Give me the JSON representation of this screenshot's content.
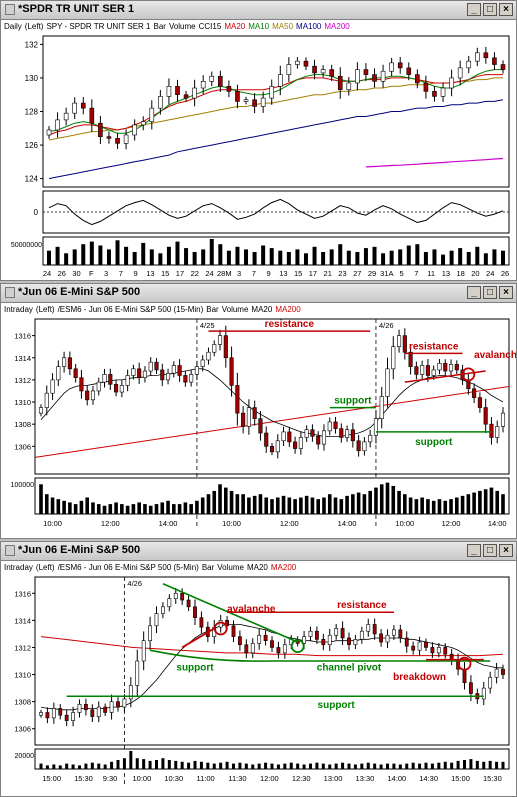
{
  "colors": {
    "ma20": "#d00000",
    "ma10": "#008000",
    "ma50": "#a08000",
    "ma100": "#000080",
    "ma200": "#cc00cc",
    "up": "#ffffff",
    "down": "#a00000",
    "annot_red": "#c00000",
    "annot_green": "#008000"
  },
  "icons": {
    "window": "chart-window-icon",
    "minimize": "minimize-icon",
    "maximize": "maximize-icon",
    "close": "close-icon"
  },
  "window_buttons": {
    "minimize": "_",
    "maximize": "□",
    "close": "×"
  },
  "win1": {
    "title": "*SPDR TR UNIT SER 1",
    "legend": [
      {
        "text": "Daily",
        "color": "#000"
      },
      {
        "text": "(Left)",
        "color": "#000"
      },
      {
        "text": "SPY - SPDR TR UNIT SER 1",
        "color": "#000"
      },
      {
        "text": "Bar",
        "color": "#000"
      },
      {
        "text": "Volume",
        "color": "#000"
      },
      {
        "text": "CCI15",
        "color": "#000"
      },
      {
        "text": "MA20",
        "color": "#d00000"
      },
      {
        "text": "MA10",
        "color": "#008000"
      },
      {
        "text": "MA50",
        "color": "#a08000"
      },
      {
        "text": "MA100",
        "color": "#000080"
      },
      {
        "text": "MA200",
        "color": "#cc00cc"
      }
    ]
  },
  "win2": {
    "title": "*Jun 06  E-Mini S&P 500",
    "legend": [
      {
        "text": "Intraday",
        "color": "#000"
      },
      {
        "text": "(Left)",
        "color": "#000"
      },
      {
        "text": "/ESM6 - Jun 06  E-Mini S&P 500  (15-Min)",
        "color": "#000"
      },
      {
        "text": "Bar",
        "color": "#000"
      },
      {
        "text": "Volume",
        "color": "#000"
      },
      {
        "text": "MA20",
        "color": "#000"
      },
      {
        "text": "MA200",
        "color": "#d00000"
      }
    ]
  },
  "win3": {
    "title": "*Jun 06  E-Mini S&P 500",
    "legend": [
      {
        "text": "Intraday",
        "color": "#000"
      },
      {
        "text": "(Left)",
        "color": "#000"
      },
      {
        "text": "/ESM6 - Jun 06  E-Mini S&P 500  (5-Min)",
        "color": "#000"
      },
      {
        "text": "Bar",
        "color": "#000"
      },
      {
        "text": "Volume",
        "color": "#000"
      },
      {
        "text": "MA20",
        "color": "#000"
      },
      {
        "text": "MA200",
        "color": "#d00000"
      }
    ]
  },
  "chart_data": [
    {
      "type": "candlestick",
      "title": "SPY - SPDR TR UNIT SER 1",
      "xlabel": "",
      "ylabel": "",
      "ylim": [
        123.5,
        132.5
      ],
      "yticks": [
        124,
        126,
        128,
        130,
        132
      ],
      "xticks": [
        "24",
        "26",
        "30",
        "F",
        "3",
        "7",
        "9",
        "13",
        "15",
        "17",
        "22",
        "24",
        "28M",
        "3",
        "7",
        "9",
        "13",
        "15",
        "17",
        "21",
        "23",
        "27",
        "29",
        "31A",
        "5",
        "7",
        "11",
        "13",
        "18",
        "20",
        "24",
        "26"
      ],
      "close": [
        126.9,
        127.5,
        127.9,
        128.5,
        128.2,
        127.3,
        126.5,
        126.4,
        126.1,
        126.6,
        127.2,
        127.4,
        128.2,
        128.9,
        129.5,
        129.0,
        128.8,
        129.4,
        129.8,
        130.1,
        129.5,
        129.2,
        128.6,
        128.7,
        128.3,
        128.8,
        129.5,
        130.2,
        130.8,
        131.0,
        130.7,
        130.3,
        130.5,
        130.1,
        129.3,
        129.7,
        130.5,
        130.2,
        129.8,
        130.4,
        130.9,
        130.6,
        130.2,
        129.7,
        129.2,
        128.9,
        129.4,
        130.0,
        130.6,
        131.0,
        131.5,
        131.2,
        130.8,
        130.5
      ],
      "ma20": [
        126.6,
        126.8,
        126.9,
        127.1,
        127.2,
        127.2,
        127.1,
        127.0,
        126.9,
        127.0,
        127.2,
        127.4,
        127.7,
        128.0,
        128.3,
        128.5,
        128.6,
        128.8,
        129.0,
        129.2,
        129.3,
        129.3,
        129.3,
        129.3,
        129.3,
        129.3,
        129.4,
        129.5,
        129.7,
        129.9,
        130.0,
        130.0,
        130.0,
        129.9,
        129.8,
        129.8,
        129.8,
        129.9,
        129.9,
        129.9,
        130.0,
        130.0,
        130.0,
        129.9,
        129.8,
        129.7,
        129.7,
        129.7,
        129.8,
        129.9,
        130.1,
        130.2,
        130.2,
        130.2
      ],
      "ma10": [
        126.8,
        126.9,
        127.1,
        127.3,
        127.4,
        127.3,
        127.1,
        126.9,
        126.7,
        126.7,
        126.9,
        127.2,
        127.6,
        128.0,
        128.4,
        128.6,
        128.8,
        129.0,
        129.2,
        129.4,
        129.5,
        129.4,
        129.2,
        129.1,
        129.0,
        129.0,
        129.1,
        129.3,
        129.6,
        129.9,
        130.1,
        130.2,
        130.2,
        130.1,
        129.9,
        129.8,
        129.8,
        129.9,
        130.0,
        130.0,
        130.1,
        130.1,
        130.0,
        129.9,
        129.7,
        129.5,
        129.4,
        129.4,
        129.6,
        129.9,
        130.2,
        130.4,
        130.5,
        130.5
      ],
      "ma50": [
        126.3,
        126.4,
        126.5,
        126.6,
        126.7,
        126.8,
        126.8,
        126.9,
        126.9,
        127.0,
        127.1,
        127.2,
        127.3,
        127.4,
        127.5,
        127.6,
        127.7,
        127.8,
        127.9,
        128.0,
        128.1,
        128.2,
        128.3,
        128.3,
        128.4,
        128.5,
        128.5,
        128.6,
        128.7,
        128.8,
        128.9,
        129.0,
        129.0,
        129.1,
        129.2,
        129.2,
        129.3,
        129.3,
        129.4,
        129.4,
        129.5,
        129.5,
        129.6,
        129.6,
        129.6,
        129.7,
        129.7,
        129.7,
        129.8,
        129.8,
        129.9,
        129.9,
        130.0,
        130.0
      ],
      "ma100": [
        124.0,
        124.1,
        124.2,
        124.3,
        124.4,
        124.5,
        124.6,
        124.7,
        124.8,
        124.9,
        125.0,
        125.1,
        125.2,
        125.3,
        125.4,
        125.6,
        125.7,
        125.8,
        125.9,
        126.0,
        126.1,
        126.2,
        126.3,
        126.4,
        126.5,
        126.6,
        126.7,
        126.8,
        126.9,
        127.0,
        127.1,
        127.2,
        127.3,
        127.4,
        127.5,
        127.6,
        127.7,
        127.7,
        127.8,
        127.9,
        128.0,
        128.0,
        128.1,
        128.2,
        128.2,
        128.3,
        128.3,
        128.4,
        128.4,
        128.5,
        128.5,
        128.6,
        128.6,
        128.7
      ],
      "ma200_start_index": 37,
      "ma200": [
        124.7,
        124.72,
        124.75,
        124.78,
        124.8,
        124.83,
        124.86,
        124.9,
        124.93,
        124.96,
        125.0,
        125.03,
        125.06,
        125.1,
        125.13,
        125.17,
        125.2
      ],
      "cci_ylim": [
        -200,
        200
      ],
      "cci_ytick": "0",
      "cci": [
        40,
        80,
        60,
        -20,
        -80,
        -120,
        -90,
        -40,
        10,
        60,
        90,
        110,
        70,
        20,
        -30,
        -60,
        -40,
        10,
        60,
        80,
        40,
        -10,
        -70,
        -50,
        -20,
        40,
        90,
        120,
        80,
        20,
        -20,
        -60,
        -40,
        10,
        60,
        40,
        -10,
        -30,
        20,
        60,
        30,
        -20,
        -60,
        -100,
        -80,
        -20,
        40,
        90,
        70,
        30,
        -10,
        -40,
        -20,
        10
      ],
      "volume_ytick": "50000000",
      "volume": [
        0.55,
        0.7,
        0.45,
        0.6,
        0.8,
        0.9,
        0.75,
        0.6,
        0.95,
        0.7,
        0.5,
        0.85,
        0.6,
        0.45,
        0.7,
        0.9,
        0.65,
        0.5,
        0.6,
        1.0,
        0.8,
        0.55,
        0.7,
        0.6,
        0.5,
        0.75,
        0.65,
        0.55,
        0.5,
        0.6,
        0.45,
        0.7,
        0.5,
        0.6,
        0.8,
        0.55,
        0.5,
        0.65,
        0.7,
        0.45,
        0.55,
        0.6,
        0.75,
        0.8,
        0.5,
        0.6,
        0.4,
        0.55,
        0.65,
        0.5,
        0.7,
        0.45,
        0.6,
        0.55
      ]
    },
    {
      "type": "candlestick",
      "title": "/ESM6 - Jun 06  E-Mini S&P 500  (15-Min)",
      "ylim": [
        1303.5,
        1317.5
      ],
      "yticks": [
        1306,
        1308,
        1310,
        1312,
        1314,
        1316
      ],
      "xticks": [
        "10:00",
        "12:00",
        "14:00",
        "10:00",
        "12:00",
        "14:00",
        "10:00",
        "12:00",
        "14:00"
      ],
      "day_labels": [
        "4/25",
        "4/26"
      ],
      "close": [
        1309.5,
        1310.8,
        1312.0,
        1313.2,
        1314.0,
        1313.0,
        1312.2,
        1311.0,
        1310.2,
        1311.0,
        1311.8,
        1312.5,
        1311.6,
        1310.9,
        1311.5,
        1312.4,
        1313.0,
        1312.2,
        1312.8,
        1313.6,
        1312.9,
        1312.0,
        1312.6,
        1313.3,
        1312.4,
        1311.8,
        1312.5,
        1313.2,
        1313.8,
        1314.5,
        1315.2,
        1316.0,
        1314.0,
        1311.5,
        1309.0,
        1307.8,
        1309.5,
        1308.5,
        1307.2,
        1306.0,
        1305.5,
        1306.5,
        1307.3,
        1306.4,
        1305.8,
        1306.8,
        1307.5,
        1306.9,
        1306.2,
        1307.4,
        1308.2,
        1307.6,
        1306.8,
        1307.5,
        1306.5,
        1305.6,
        1306.4,
        1307.0,
        1308.5,
        1310.5,
        1313.0,
        1315.0,
        1316.0,
        1314.5,
        1313.2,
        1312.5,
        1313.3,
        1312.4,
        1312.9,
        1313.5,
        1312.8,
        1313.4,
        1312.9,
        1312.0,
        1311.2,
        1310.4,
        1309.5,
        1308.0,
        1306.8,
        1307.8,
        1309.0
      ],
      "ma20": [
        1308.4,
        1309.0,
        1309.6,
        1310.2,
        1310.8,
        1311.2,
        1311.4,
        1311.5,
        1311.5,
        1311.6,
        1311.7,
        1311.8,
        1311.9,
        1312.0,
        1312.0,
        1312.1,
        1312.2,
        1312.2,
        1312.3,
        1312.4,
        1312.4,
        1312.5,
        1312.5,
        1312.6,
        1312.7,
        1312.8,
        1312.9,
        1313.0,
        1313.0,
        1312.8,
        1312.4,
        1312.0,
        1311.5,
        1311.0,
        1310.5,
        1310.0,
        1309.6,
        1309.2,
        1308.9,
        1308.6,
        1308.3,
        1308.1,
        1307.9,
        1307.7,
        1307.5,
        1307.3,
        1307.2,
        1307.1,
        1307.0,
        1306.9,
        1306.9,
        1306.9,
        1306.9,
        1307.0,
        1307.1,
        1307.2,
        1307.4,
        1307.7,
        1308.2,
        1308.8,
        1309.4,
        1310.0,
        1310.6,
        1311.1,
        1311.5,
        1311.8,
        1312.0,
        1312.2,
        1312.3,
        1312.4,
        1312.4,
        1312.3,
        1312.2,
        1312.0,
        1311.8,
        1311.6,
        1311.3,
        1311.0,
        1310.6,
        1310.3,
        1310.0
      ],
      "ma200": [
        1305.0,
        1311.4
      ],
      "annotations": [
        {
          "text": "resistance",
          "color": "#c00000"
        },
        {
          "text": "resistance",
          "color": "#c00000"
        },
        {
          "text": "avalanche",
          "color": "#c00000"
        },
        {
          "text": "support",
          "color": "#008000"
        },
        {
          "text": "support",
          "color": "#008000"
        }
      ],
      "volume_ytick": "100000",
      "volume": [
        0.9,
        0.6,
        0.5,
        0.45,
        0.4,
        0.35,
        0.3,
        0.4,
        0.5,
        0.35,
        0.3,
        0.25,
        0.3,
        0.35,
        0.3,
        0.25,
        0.3,
        0.35,
        0.3,
        0.25,
        0.3,
        0.35,
        0.4,
        0.3,
        0.3,
        0.35,
        0.3,
        0.4,
        0.5,
        0.6,
        0.7,
        0.9,
        0.8,
        0.7,
        0.6,
        0.6,
        0.5,
        0.55,
        0.6,
        0.5,
        0.45,
        0.5,
        0.55,
        0.5,
        0.45,
        0.5,
        0.55,
        0.5,
        0.45,
        0.5,
        0.6,
        0.5,
        0.45,
        0.55,
        0.6,
        0.65,
        0.6,
        0.7,
        0.8,
        0.9,
        0.95,
        0.85,
        0.7,
        0.6,
        0.5,
        0.45,
        0.5,
        0.45,
        0.4,
        0.45,
        0.4,
        0.45,
        0.5,
        0.55,
        0.6,
        0.65,
        0.7,
        0.75,
        0.8,
        0.7,
        0.6
      ]
    },
    {
      "type": "candlestick",
      "title": "/ESM6 - Jun 06  E-Mini S&P 500  (5-Min)",
      "ylim": [
        1304.8,
        1317.2
      ],
      "yticks": [
        1306,
        1308,
        1310,
        1312,
        1314,
        1316
      ],
      "xticks": [
        "15:00",
        "15:30",
        "9:30",
        "10:00",
        "10:30",
        "11:00",
        "11:30",
        "12:00",
        "12:30",
        "13:00",
        "13:30",
        "14:00",
        "14:30",
        "15:00",
        "15:30"
      ],
      "day_labels": [
        "4/26"
      ],
      "close": [
        1307.2,
        1306.8,
        1307.5,
        1307.0,
        1306.6,
        1307.2,
        1307.8,
        1307.4,
        1306.9,
        1307.6,
        1307.2,
        1308.0,
        1307.6,
        1308.2,
        1309.2,
        1311.0,
        1312.5,
        1313.6,
        1314.5,
        1315.0,
        1315.6,
        1316.0,
        1315.5,
        1315.0,
        1314.2,
        1313.5,
        1312.8,
        1313.5,
        1314.0,
        1313.6,
        1312.8,
        1312.2,
        1311.6,
        1312.3,
        1312.9,
        1312.5,
        1312.0,
        1311.6,
        1312.2,
        1312.6,
        1312.3,
        1312.8,
        1313.2,
        1312.6,
        1312.2,
        1312.9,
        1313.4,
        1312.7,
        1312.2,
        1312.6,
        1313.2,
        1313.7,
        1313.0,
        1312.4,
        1312.9,
        1313.3,
        1312.7,
        1312.1,
        1311.8,
        1312.4,
        1312.0,
        1311.6,
        1312.0,
        1311.5,
        1311.1,
        1310.4,
        1309.4,
        1308.6,
        1308.2,
        1309.0,
        1309.8,
        1310.4,
        1310.0
      ],
      "ma20": [
        1307.6,
        1307.5,
        1307.5,
        1307.4,
        1307.4,
        1307.4,
        1307.5,
        1307.5,
        1307.5,
        1307.5,
        1307.5,
        1307.6,
        1307.6,
        1307.7,
        1307.9,
        1308.2,
        1308.6,
        1309.1,
        1309.6,
        1310.2,
        1310.8,
        1311.4,
        1311.9,
        1312.3,
        1312.7,
        1313.0,
        1313.2,
        1313.4,
        1313.6,
        1313.7,
        1313.7,
        1313.7,
        1313.6,
        1313.5,
        1313.4,
        1313.3,
        1313.1,
        1313.0,
        1312.8,
        1312.7,
        1312.6,
        1312.5,
        1312.5,
        1312.4,
        1312.4,
        1312.4,
        1312.5,
        1312.5,
        1312.5,
        1312.5,
        1312.6,
        1312.6,
        1312.7,
        1312.7,
        1312.7,
        1312.7,
        1312.7,
        1312.6,
        1312.6,
        1312.5,
        1312.4,
        1312.3,
        1312.2,
        1312.1,
        1312.0,
        1311.8,
        1311.5,
        1311.2,
        1310.9,
        1310.7,
        1310.6,
        1310.5,
        1310.5
      ],
      "ma200": [
        1312.8,
        1312.6,
        1312.4,
        1312.2,
        1312.0,
        1311.9,
        1311.8,
        1311.7,
        1311.6,
        1311.6,
        1311.5,
        1311.5,
        1311.4,
        1311.4,
        1311.4,
        1311.4,
        1311.4,
        1311.4,
        1311.4,
        1311.4,
        1311.5
      ],
      "annotations": [
        {
          "text": "avalanche",
          "color": "#c00000"
        },
        {
          "text": "resistance",
          "color": "#c00000"
        },
        {
          "text": "support",
          "color": "#008000"
        },
        {
          "text": "channel pivot",
          "color": "#008000"
        },
        {
          "text": "breakdown",
          "color": "#c00000"
        },
        {
          "text": "support",
          "color": "#008000"
        }
      ],
      "volume_ytick": "20000",
      "volume": [
        0.3,
        0.2,
        0.25,
        0.2,
        0.3,
        0.25,
        0.2,
        0.3,
        0.35,
        0.3,
        0.25,
        0.4,
        0.5,
        0.6,
        1.0,
        0.6,
        0.55,
        0.45,
        0.5,
        0.6,
        0.5,
        0.45,
        0.4,
        0.35,
        0.45,
        0.4,
        0.35,
        0.3,
        0.35,
        0.4,
        0.3,
        0.35,
        0.3,
        0.25,
        0.3,
        0.35,
        0.3,
        0.25,
        0.3,
        0.35,
        0.3,
        0.25,
        0.3,
        0.35,
        0.3,
        0.25,
        0.3,
        0.35,
        0.3,
        0.25,
        0.3,
        0.35,
        0.3,
        0.25,
        0.3,
        0.3,
        0.25,
        0.3,
        0.35,
        0.3,
        0.35,
        0.3,
        0.35,
        0.4,
        0.35,
        0.45,
        0.5,
        0.55,
        0.45,
        0.4,
        0.45,
        0.4,
        0.4
      ]
    }
  ]
}
